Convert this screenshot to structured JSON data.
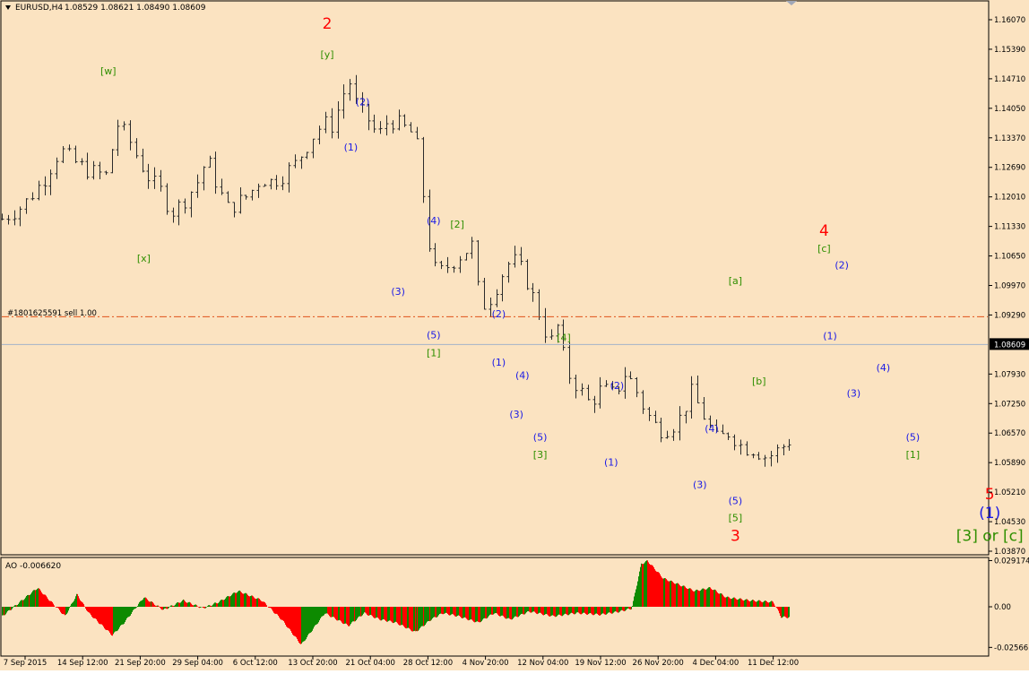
{
  "window": {
    "symbol_title": "EURUSD,H4",
    "ohlc": "1.08529 1.08621 1.08490 1.08609",
    "indicator_label": "AO -0.006620"
  },
  "colors": {
    "background": "#fbe3c1",
    "bars": "#2b2b2b",
    "grid_border": "#000000",
    "wave_red": "#ff0000",
    "wave_blue": "#1a1ae6",
    "wave_green": "#2f8f00",
    "order_line": "#e0521a",
    "bid_line": "#a3b3c8",
    "ao_up": "#0d8a00",
    "ao_down": "#ff0000"
  },
  "price_axis": {
    "labels": [
      "1.16070",
      "1.15390",
      "1.14710",
      "1.14050",
      "1.13370",
      "1.12690",
      "1.12010",
      "1.11330",
      "1.10650",
      "1.09970",
      "1.09290",
      "1.08609",
      "1.07930",
      "1.07250",
      "1.06570",
      "1.05890",
      "1.05210",
      "1.04530",
      "1.03870"
    ],
    "current_price": "1.08609"
  },
  "time_axis": {
    "labels": [
      "7 Sep 2015",
      "14 Sep 12:00",
      "21 Sep 20:00",
      "29 Sep 04:00",
      "6 Oct 12:00",
      "13 Oct 20:00",
      "21 Oct 04:00",
      "28 Oct 12:00",
      "4 Nov 20:00",
      "12 Nov 04:00",
      "19 Nov 12:00",
      "26 Nov 20:00",
      "4 Dec 04:00",
      "11 Dec 12:00"
    ]
  },
  "order_line": {
    "label": "#1801625591 sell 1.00",
    "price": 1.0925
  },
  "ao_axis": {
    "labels": [
      "0.029174",
      "0.00",
      "-0.02566"
    ]
  },
  "wave_labels": [
    {
      "text": "2",
      "color": "red",
      "size": "big",
      "x": 0.055,
      "price": 1.1586
    },
    {
      "text": "[y]",
      "color": "green",
      "x": 0.055,
      "price": 1.1519
    },
    {
      "text": "[w]",
      "color": "green",
      "x": 0.018,
      "price": 1.1481
    },
    {
      "text": "[x]",
      "color": "green",
      "x": 0.024,
      "price": 1.1052
    },
    {
      "text": "(2)",
      "color": "blue",
      "x": 0.061,
      "price": 1.1412
    },
    {
      "text": "(1)",
      "color": "blue",
      "x": 0.059,
      "price": 1.1308
    },
    {
      "text": "(4)",
      "color": "blue",
      "x": 0.073,
      "price": 1.1138
    },
    {
      "text": "[2]",
      "color": "green",
      "x": 0.077,
      "price": 1.113
    },
    {
      "text": "(3)",
      "color": "blue",
      "x": 0.067,
      "price": 1.0975
    },
    {
      "text": "(2)",
      "color": "blue",
      "x": 0.084,
      "price": 1.0924
    },
    {
      "text": "(5)",
      "color": "blue",
      "x": 0.073,
      "price": 1.0875
    },
    {
      "text": "[1]",
      "color": "green",
      "x": 0.073,
      "price": 1.0834
    },
    {
      "text": "(1)",
      "color": "blue",
      "x": 0.084,
      "price": 1.0812
    },
    {
      "text": "(4)",
      "color": "blue",
      "x": 0.088,
      "price": 1.0782
    },
    {
      "text": "[4]",
      "color": "green",
      "x": 0.095,
      "price": 1.0869
    },
    {
      "text": "(2)",
      "color": "blue",
      "x": 0.104,
      "price": 1.0759
    },
    {
      "text": "(3)",
      "color": "blue",
      "x": 0.087,
      "price": 1.0693
    },
    {
      "text": "(5)",
      "color": "blue",
      "x": 0.091,
      "price": 1.064
    },
    {
      "text": "[3]",
      "color": "green",
      "x": 0.091,
      "price": 1.06
    },
    {
      "text": "(1)",
      "color": "blue",
      "x": 0.103,
      "price": 1.0582
    },
    {
      "text": "(4)",
      "color": "blue",
      "x": 0.12,
      "price": 1.066
    },
    {
      "text": "(3)",
      "color": "blue",
      "x": 0.118,
      "price": 1.0531
    },
    {
      "text": "(5)",
      "color": "blue",
      "x": 0.124,
      "price": 1.0493
    },
    {
      "text": "[5]",
      "color": "green",
      "x": 0.124,
      "price": 1.0454
    },
    {
      "text": "3",
      "color": "red",
      "size": "big",
      "x": 0.124,
      "price": 1.041
    },
    {
      "text": "[a]",
      "color": "green",
      "x": 0.124,
      "price": 1.1
    },
    {
      "text": "[b]",
      "color": "green",
      "x": 0.128,
      "price": 1.0769
    },
    {
      "text": "4",
      "color": "red",
      "size": "big",
      "x": 0.139,
      "price": 1.1112
    },
    {
      "text": "[c]",
      "color": "green",
      "x": 0.139,
      "price": 1.1074
    },
    {
      "text": "(2)",
      "color": "blue",
      "x": 0.142,
      "price": 1.1036
    },
    {
      "text": "(1)",
      "color": "blue",
      "x": 0.14,
      "price": 1.0873
    },
    {
      "text": "(4)",
      "color": "blue",
      "x": 0.149,
      "price": 1.08
    },
    {
      "text": "(3)",
      "color": "blue",
      "x": 0.144,
      "price": 1.0741
    },
    {
      "text": "(5)",
      "color": "blue",
      "x": 0.154,
      "price": 1.064
    },
    {
      "text": "[1]",
      "color": "green",
      "x": 0.154,
      "price": 1.06
    },
    {
      "text": "5",
      "color": "red",
      "size": "big",
      "x": 0.167,
      "price": 1.0505
    },
    {
      "text": "(1)",
      "color": "blue",
      "size": "big",
      "x": 0.167,
      "price": 1.0461
    },
    {
      "text": "[3] or [c]",
      "color": "green",
      "size": "big",
      "x": 0.167,
      "price": 1.041
    }
  ],
  "chart_data": [
    {
      "type": "candlestick",
      "title": "EURUSD,H4",
      "xlabel": "",
      "ylabel": "",
      "ylim": [
        1.0355,
        1.164
      ],
      "x_ticks": [
        "7 Sep 2015",
        "14 Sep 12:00",
        "21 Sep 20:00",
        "29 Sep 04:00",
        "6 Oct 12:00",
        "13 Oct 20:00",
        "21 Oct 04:00",
        "28 Oct 12:00",
        "4 Nov 20:00",
        "12 Nov 04:00",
        "19 Nov 12:00",
        "26 Nov 20:00",
        "4 Dec 04:00",
        "11 Dec 12:00"
      ],
      "close_path": [
        {
          "x": 0.0,
          "close": 1.115
        },
        {
          "x": 0.01,
          "close": 1.118
        },
        {
          "x": 0.02,
          "close": 1.124
        },
        {
          "x": 0.028,
          "close": 1.131
        },
        {
          "x": 0.035,
          "close": 1.128
        },
        {
          "x": 0.042,
          "close": 1.126
        },
        {
          "x": 0.05,
          "close": 1.125
        },
        {
          "x": 0.055,
          "close": 1.137
        },
        {
          "x": 0.06,
          "close": 1.134
        },
        {
          "x": 0.066,
          "close": 1.128
        },
        {
          "x": 0.071,
          "close": 1.124
        },
        {
          "x": 0.076,
          "close": 1.1215
        },
        {
          "x": 0.081,
          "close": 1.1165
        },
        {
          "x": 0.086,
          "close": 1.1185
        },
        {
          "x": 0.093,
          "close": 1.123
        },
        {
          "x": 0.098,
          "close": 1.129
        },
        {
          "x": 0.104,
          "close": 1.1215
        },
        {
          "x": 0.108,
          "close": 1.1175
        },
        {
          "x": 0.112,
          "close": 1.1185
        },
        {
          "x": 0.118,
          "close": 1.1205
        },
        {
          "x": 0.124,
          "close": 1.1245
        },
        {
          "x": 0.129,
          "close": 1.1235
        },
        {
          "x": 0.134,
          "close": 1.125
        },
        {
          "x": 0.14,
          "close": 1.1275
        },
        {
          "x": 0.146,
          "close": 1.132
        },
        {
          "x": 0.15,
          "close": 1.135
        },
        {
          "x": 0.154,
          "close": 1.137
        },
        {
          "x": 0.158,
          "close": 1.1365
        },
        {
          "x": 0.162,
          "close": 1.142
        },
        {
          "x": 0.166,
          "close": 1.147
        },
        {
          "x": 0.17,
          "close": 1.1405
        },
        {
          "x": 0.175,
          "close": 1.138
        },
        {
          "x": 0.18,
          "close": 1.134
        },
        {
          "x": 0.185,
          "close": 1.138
        },
        {
          "x": 0.191,
          "close": 1.1365
        },
        {
          "x": 0.197,
          "close": 1.1345
        },
        {
          "x": 0.2,
          "close": 1.129
        },
        {
          "x": 0.203,
          "close": 1.112
        },
        {
          "x": 0.208,
          "close": 1.102
        },
        {
          "x": 0.214,
          "close": 1.1045
        },
        {
          "x": 0.22,
          "close": 1.107
        },
        {
          "x": 0.225,
          "close": 1.109
        },
        {
          "x": 0.229,
          "close": 1.0945
        },
        {
          "x": 0.234,
          "close": 1.097
        },
        {
          "x": 0.239,
          "close": 1.102
        },
        {
          "x": 0.244,
          "close": 1.106
        },
        {
          "x": 0.249,
          "close": 1.103
        },
        {
          "x": 0.253,
          "close": 1.0985
        },
        {
          "x": 0.258,
          "close": 1.092
        },
        {
          "x": 0.262,
          "close": 1.086
        },
        {
          "x": 0.266,
          "close": 1.0905
        },
        {
          "x": 0.27,
          "close": 1.08
        },
        {
          "x": 0.276,
          "close": 1.076
        },
        {
          "x": 0.281,
          "close": 1.0725
        },
        {
          "x": 0.287,
          "close": 1.076
        },
        {
          "x": 0.293,
          "close": 1.0745
        },
        {
          "x": 0.298,
          "close": 1.0795
        },
        {
          "x": 0.302,
          "close": 1.077
        },
        {
          "x": 0.308,
          "close": 1.0705
        },
        {
          "x": 0.314,
          "close": 1.0665
        },
        {
          "x": 0.32,
          "close": 1.067
        },
        {
          "x": 0.324,
          "close": 1.069
        },
        {
          "x": 0.33,
          "close": 1.075
        },
        {
          "x": 0.336,
          "close": 1.0695
        },
        {
          "x": 0.342,
          "close": 1.064
        },
        {
          "x": 0.348,
          "close": 1.066
        },
        {
          "x": 0.354,
          "close": 1.0625
        },
        {
          "x": 0.36,
          "close": 1.062
        },
        {
          "x": 0.366,
          "close": 1.06
        },
        {
          "x": 0.372,
          "close": 1.062
        },
        {
          "x": 0.378,
          "close": 1.0645
        },
        {
          "x": 0.382,
          "close": 1.058
        },
        {
          "x": 0.386,
          "close": 1.054
        },
        {
          "x": 0.389,
          "close": 1.053
        },
        {
          "x": 0.392,
          "close": 1.086
        },
        {
          "x": 0.396,
          "close": 1.0965
        },
        {
          "x": 0.401,
          "close": 1.09
        },
        {
          "x": 0.405,
          "close": 1.0835
        },
        {
          "x": 0.409,
          "close": 1.0805
        },
        {
          "x": 0.413,
          "close": 1.087
        },
        {
          "x": 0.418,
          "close": 1.096
        },
        {
          "x": 0.423,
          "close": 1.101
        },
        {
          "x": 0.428,
          "close": 1.0975
        },
        {
          "x": 0.433,
          "close": 1.094
        },
        {
          "x": 0.438,
          "close": 1.102
        },
        {
          "x": 0.442,
          "close": 1.105
        },
        {
          "x": 0.446,
          "close": 1.099
        },
        {
          "x": 0.45,
          "close": 1.0935
        },
        {
          "x": 0.454,
          "close": 1.0905
        },
        {
          "x": 0.456,
          "close": 1.086
        }
      ]
    },
    {
      "type": "bar",
      "title": "AO -0.006620",
      "xlabel": "",
      "ylabel": "",
      "ylim": [
        -0.03,
        0.03
      ],
      "y_ticks": [
        "0.029174",
        "0.00",
        "-0.02566"
      ],
      "values_path": [
        {
          "x": 0.0,
          "value": -0.006
        },
        {
          "x": 0.025,
          "value": 0.004
        },
        {
          "x": 0.045,
          "value": 0.012
        },
        {
          "x": 0.08,
          "value": -0.006
        },
        {
          "x": 0.095,
          "value": 0.008
        },
        {
          "x": 0.11,
          "value": -0.004
        },
        {
          "x": 0.14,
          "value": -0.018
        },
        {
          "x": 0.155,
          "value": -0.01
        },
        {
          "x": 0.18,
          "value": 0.006
        },
        {
          "x": 0.205,
          "value": -0.002
        },
        {
          "x": 0.23,
          "value": 0.004
        },
        {
          "x": 0.255,
          "value": -0.001
        },
        {
          "x": 0.275,
          "value": 0.003
        },
        {
          "x": 0.3,
          "value": 0.01
        },
        {
          "x": 0.33,
          "value": 0.004
        },
        {
          "x": 0.355,
          "value": -0.008
        },
        {
          "x": 0.38,
          "value": -0.024
        },
        {
          "x": 0.41,
          "value": -0.004
        },
        {
          "x": 0.44,
          "value": -0.012
        },
        {
          "x": 0.46,
          "value": -0.004
        },
        {
          "x": 0.48,
          "value": -0.008
        },
        {
          "x": 0.5,
          "value": -0.01
        },
        {
          "x": 0.525,
          "value": -0.016
        },
        {
          "x": 0.545,
          "value": -0.008
        },
        {
          "x": 0.56,
          "value": -0.004
        },
        {
          "x": 0.58,
          "value": -0.006
        },
        {
          "x": 0.605,
          "value": -0.01
        },
        {
          "x": 0.625,
          "value": -0.004
        },
        {
          "x": 0.645,
          "value": -0.008
        },
        {
          "x": 0.67,
          "value": -0.003
        },
        {
          "x": 0.7,
          "value": -0.006
        },
        {
          "x": 0.73,
          "value": -0.004
        },
        {
          "x": 0.76,
          "value": -0.005
        },
        {
          "x": 0.785,
          "value": -0.003
        },
        {
          "x": 0.8,
          "value": -0.001
        },
        {
          "x": 0.812,
          "value": 0.027
        },
        {
          "x": 0.82,
          "value": 0.029
        },
        {
          "x": 0.84,
          "value": 0.018
        },
        {
          "x": 0.86,
          "value": 0.014
        },
        {
          "x": 0.88,
          "value": 0.01
        },
        {
          "x": 0.9,
          "value": 0.012
        },
        {
          "x": 0.92,
          "value": 0.006
        },
        {
          "x": 0.935,
          "value": 0.005
        },
        {
          "x": 0.95,
          "value": 0.004
        },
        {
          "x": 0.98,
          "value": 0.003
        },
        {
          "x": 0.99,
          "value": -0.0066
        },
        {
          "x": 1.0,
          "value": -0.0066
        }
      ]
    }
  ]
}
